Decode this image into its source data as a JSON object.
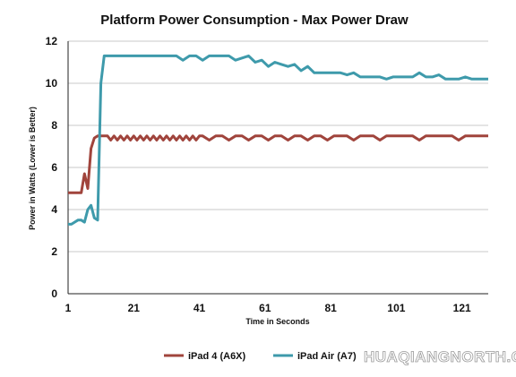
{
  "chart_data": {
    "type": "line",
    "title": "Platform Power Consumption - Max Power Draw",
    "xlabel": "Time in Seconds",
    "ylabel": "Power in Watts (Lower is Better)",
    "xlim": [
      1,
      129
    ],
    "ylim": [
      0,
      12
    ],
    "xticks": [
      1,
      21,
      41,
      61,
      81,
      101,
      121
    ],
    "yticks": [
      0,
      2,
      4,
      6,
      8,
      10,
      12
    ],
    "grid": "horizontal",
    "legend_position": "bottom",
    "series": [
      {
        "name": "iPad 4 (A6X)",
        "color": "#a0443c",
        "x": [
          1,
          2,
          3,
          4,
          5,
          6,
          7,
          8,
          9,
          10,
          11,
          12,
          13,
          14,
          15,
          16,
          17,
          18,
          19,
          20,
          21,
          22,
          23,
          24,
          25,
          26,
          27,
          28,
          29,
          30,
          31,
          32,
          33,
          34,
          35,
          36,
          37,
          38,
          39,
          40,
          41,
          42,
          44,
          46,
          48,
          50,
          52,
          54,
          56,
          58,
          60,
          62,
          64,
          66,
          68,
          70,
          72,
          74,
          76,
          78,
          80,
          82,
          84,
          86,
          88,
          90,
          92,
          94,
          96,
          98,
          100,
          102,
          104,
          106,
          108,
          110,
          112,
          114,
          116,
          118,
          120,
          122,
          124,
          126,
          128,
          129
        ],
        "y": [
          4.8,
          4.8,
          4.8,
          4.8,
          4.8,
          5.7,
          5.0,
          6.9,
          7.4,
          7.5,
          7.5,
          7.5,
          7.5,
          7.3,
          7.5,
          7.3,
          7.5,
          7.3,
          7.5,
          7.3,
          7.5,
          7.3,
          7.5,
          7.3,
          7.5,
          7.3,
          7.5,
          7.3,
          7.5,
          7.3,
          7.5,
          7.3,
          7.5,
          7.3,
          7.5,
          7.3,
          7.5,
          7.3,
          7.5,
          7.3,
          7.5,
          7.5,
          7.3,
          7.5,
          7.5,
          7.3,
          7.5,
          7.5,
          7.3,
          7.5,
          7.5,
          7.3,
          7.5,
          7.5,
          7.3,
          7.5,
          7.5,
          7.3,
          7.5,
          7.5,
          7.3,
          7.5,
          7.5,
          7.5,
          7.3,
          7.5,
          7.5,
          7.5,
          7.3,
          7.5,
          7.5,
          7.5,
          7.5,
          7.5,
          7.3,
          7.5,
          7.5,
          7.5,
          7.5,
          7.5,
          7.3,
          7.5,
          7.5,
          7.5,
          7.5,
          7.5
        ]
      },
      {
        "name": "iPad Air (A7)",
        "color": "#3e9aab",
        "x": [
          1,
          2,
          3,
          4,
          5,
          6,
          7,
          8,
          9,
          10,
          11,
          12,
          13,
          14,
          15,
          16,
          17,
          18,
          19,
          20,
          21,
          22,
          24,
          26,
          28,
          30,
          32,
          34,
          36,
          38,
          40,
          42,
          44,
          46,
          48,
          50,
          52,
          54,
          56,
          58,
          60,
          62,
          64,
          66,
          68,
          70,
          72,
          74,
          76,
          78,
          80,
          82,
          84,
          86,
          88,
          90,
          92,
          94,
          96,
          98,
          100,
          102,
          104,
          106,
          108,
          110,
          112,
          114,
          116,
          118,
          120,
          122,
          124,
          126,
          128,
          129
        ],
        "y": [
          3.3,
          3.3,
          3.4,
          3.5,
          3.5,
          3.4,
          4.0,
          4.2,
          3.6,
          3.5,
          10.0,
          11.3,
          11.3,
          11.3,
          11.3,
          11.3,
          11.3,
          11.3,
          11.3,
          11.3,
          11.3,
          11.3,
          11.3,
          11.3,
          11.3,
          11.3,
          11.3,
          11.3,
          11.1,
          11.3,
          11.3,
          11.1,
          11.3,
          11.3,
          11.3,
          11.3,
          11.1,
          11.2,
          11.3,
          11.0,
          11.1,
          10.8,
          11.0,
          10.9,
          10.8,
          10.9,
          10.6,
          10.8,
          10.5,
          10.5,
          10.5,
          10.5,
          10.5,
          10.4,
          10.5,
          10.3,
          10.3,
          10.3,
          10.3,
          10.2,
          10.3,
          10.3,
          10.3,
          10.3,
          10.5,
          10.3,
          10.3,
          10.4,
          10.2,
          10.2,
          10.2,
          10.3,
          10.2,
          10.2,
          10.2,
          10.2
        ]
      }
    ]
  },
  "watermark": "HUAQIANGNORTH.COM"
}
